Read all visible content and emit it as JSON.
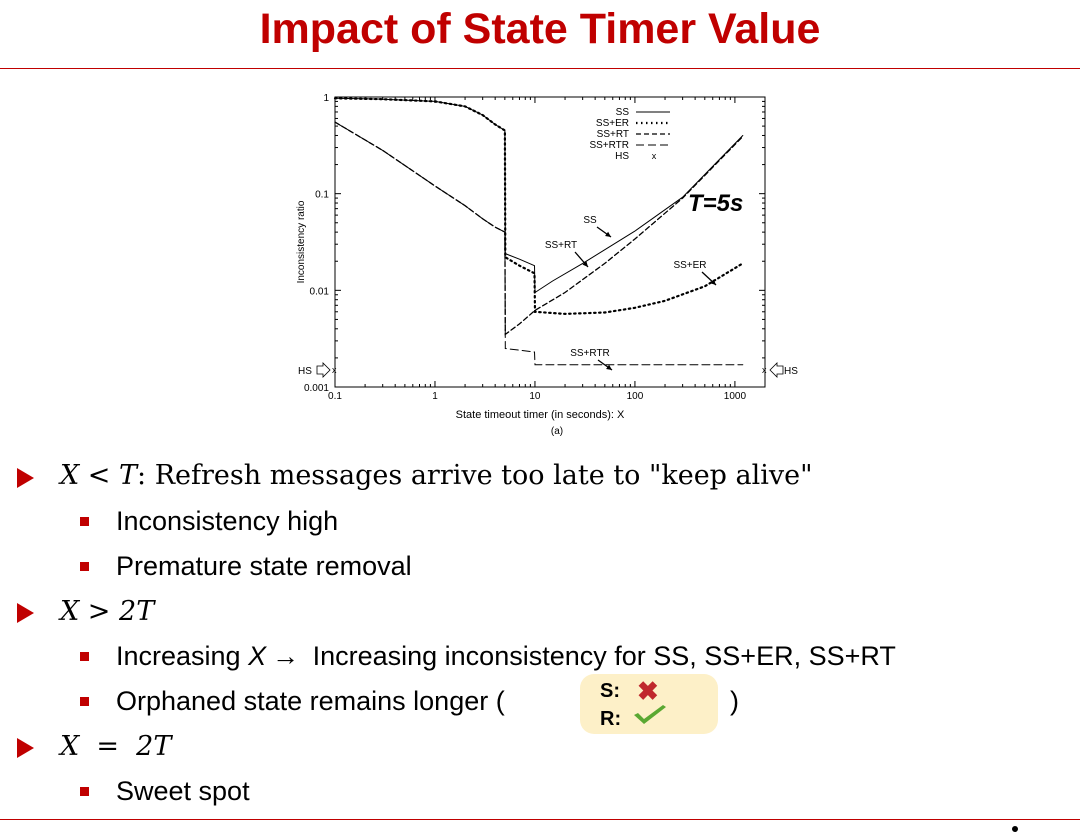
{
  "slide": {
    "title": "Impact of State Timer Value",
    "bullets": [
      {
        "math": "X < T",
        "text": ": Refresh messages arrive too late to \"keep alive\""
      },
      {
        "text": "Inconsistency high"
      },
      {
        "text": "Premature state removal"
      },
      {
        "math": "X > 2T"
      },
      {
        "pre": "Increasing ",
        "var": "X",
        "arrow": "→",
        "text": " Increasing inconsistency for  SS, SS+ER, SS+RT"
      },
      {
        "text": "Orphaned state remains longer (",
        "close": ")"
      },
      {
        "math": "X  =  2T"
      },
      {
        "text": "Sweet spot"
      }
    ],
    "sr_box": {
      "s_label": "S:",
      "r_label": "R:",
      "s_icon": "cross-icon",
      "r_icon": "check-icon",
      "s_color": "#c0282d",
      "r_color": "#5aa832"
    },
    "accent_color": "#c00000"
  },
  "chart_data": {
    "type": "line",
    "xscale": "log",
    "yscale": "log",
    "xlim": [
      0.1,
      2000
    ],
    "ylim": [
      0.001,
      1
    ],
    "x_ticks": [
      "0.1",
      "1",
      "10",
      "100",
      "1000"
    ],
    "y_ticks": [
      "1",
      "0.1",
      "0.01",
      "0.001"
    ],
    "xlabel": "State timeout timer (in seconds):  X",
    "ylabel": "Inconsistency ratio",
    "caption": "(a)",
    "annotation": "T=5s",
    "hs_marker_left": "HS",
    "hs_marker_right": "HS",
    "legend_position": "top-right",
    "curve_labels": [
      "SS",
      "SS+RT",
      "SS+ER",
      "SS+RTR"
    ],
    "series": [
      {
        "name": "SS",
        "style": "solid",
        "x": [
          0.1,
          0.3,
          1,
          2,
          3,
          4,
          5,
          5.05,
          7,
          9.9,
          10,
          15,
          30,
          100,
          300,
          1200
        ],
        "y": [
          0.97,
          0.95,
          0.9,
          0.8,
          0.65,
          0.52,
          0.45,
          0.024,
          0.021,
          0.018,
          0.0095,
          0.0125,
          0.019,
          0.041,
          0.092,
          0.4
        ]
      },
      {
        "name": "SS+ER",
        "style": "dotted",
        "x": [
          0.1,
          0.3,
          1,
          2,
          3,
          4,
          5,
          5.05,
          7,
          9.9,
          10,
          20,
          50,
          100,
          200,
          500,
          1200
        ],
        "y": [
          0.97,
          0.95,
          0.9,
          0.8,
          0.65,
          0.52,
          0.45,
          0.022,
          0.018,
          0.015,
          0.006,
          0.0057,
          0.0059,
          0.0066,
          0.0078,
          0.011,
          0.019
        ]
      },
      {
        "name": "SS+RT",
        "style": "short-dash",
        "x": [
          0.1,
          0.3,
          1,
          2,
          3,
          4,
          5,
          5.05,
          7,
          10,
          20,
          50,
          100,
          300,
          1200
        ],
        "y": [
          0.55,
          0.28,
          0.12,
          0.075,
          0.055,
          0.045,
          0.04,
          0.0035,
          0.0045,
          0.0062,
          0.0095,
          0.019,
          0.034,
          0.09,
          0.39
        ]
      },
      {
        "name": "SS+RTR",
        "style": "long-dash",
        "x": [
          0.1,
          0.3,
          1,
          2,
          3,
          4,
          5,
          5.05,
          7,
          9.9,
          10,
          100,
          1200
        ],
        "y": [
          0.55,
          0.28,
          0.12,
          0.075,
          0.055,
          0.045,
          0.04,
          0.0025,
          0.0024,
          0.0023,
          0.0017,
          0.0017,
          0.0017
        ]
      },
      {
        "name": "HS",
        "style": "x-markers",
        "x": [],
        "y": []
      }
    ]
  }
}
